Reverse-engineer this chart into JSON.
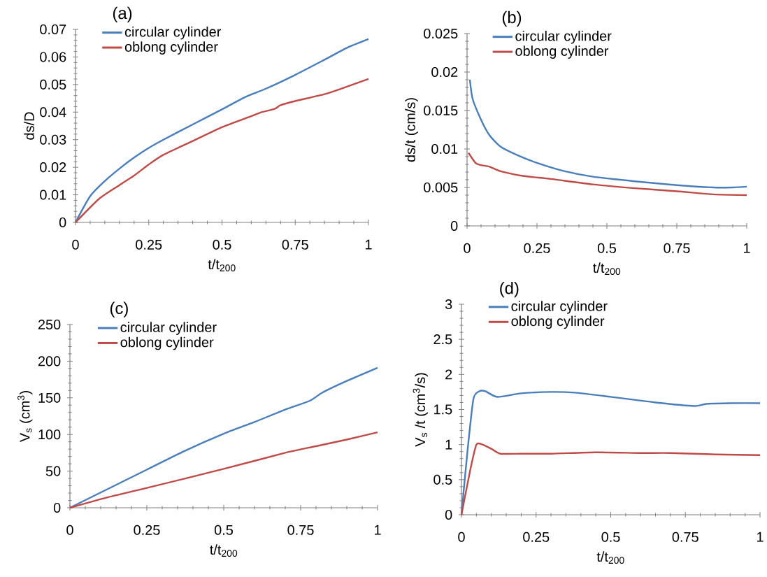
{
  "chart_data": [
    {
      "type": "line",
      "title": "(a)",
      "xlabel": "t/t$_{200}$",
      "ylabel": "ds/D",
      "xlim": [
        0,
        1
      ],
      "ylim": [
        0,
        0.07
      ],
      "xticks": [
        0,
        0.25,
        0.5,
        0.75,
        1
      ],
      "yticks": [
        0,
        0.01,
        0.02,
        0.03,
        0.04,
        0.05,
        0.06,
        0.07
      ],
      "legend": "top left",
      "grid": false,
      "marker": "none",
      "series": [
        {
          "name": "circular cylinder",
          "color": "#4a7ebb",
          "x": [
            0,
            0.05,
            0.1,
            0.15,
            0.2,
            0.25,
            0.3,
            0.4,
            0.5,
            0.58,
            0.65,
            0.75,
            0.85,
            0.93,
            1
          ],
          "values": [
            0,
            0.0095,
            0.015,
            0.0195,
            0.0235,
            0.027,
            0.03,
            0.0355,
            0.041,
            0.0455,
            0.0485,
            0.0535,
            0.059,
            0.0635,
            0.0665
          ]
        },
        {
          "name": "oblong cylinder",
          "color": "#be4b48",
          "x": [
            0,
            0.08,
            0.15,
            0.2,
            0.25,
            0.3,
            0.4,
            0.5,
            0.6,
            0.63,
            0.68,
            0.7,
            0.75,
            0.85,
            0.92,
            1
          ],
          "values": [
            0,
            0.0085,
            0.0135,
            0.017,
            0.021,
            0.0245,
            0.0295,
            0.0345,
            0.0385,
            0.0398,
            0.0412,
            0.0425,
            0.044,
            0.0465,
            0.049,
            0.052
          ]
        }
      ]
    },
    {
      "type": "line",
      "title": "(b)",
      "xlabel": "t/t$_{200}$",
      "ylabel": "ds/t  (cm/s)",
      "xlim": [
        0,
        1
      ],
      "ylim": [
        0,
        0.025
      ],
      "xticks": [
        0,
        0.25,
        0.5,
        0.75,
        1
      ],
      "yticks": [
        0,
        0.005,
        0.01,
        0.015,
        0.02,
        0.025
      ],
      "legend": "top left",
      "grid": false,
      "marker": "none",
      "series": [
        {
          "name": "circular cylinder",
          "color": "#4a7ebb",
          "x": [
            0.01,
            0.02,
            0.05,
            0.08,
            0.12,
            0.18,
            0.25,
            0.35,
            0.45,
            0.6,
            0.75,
            0.88,
            0.95,
            1
          ],
          "values": [
            0.019,
            0.0165,
            0.0138,
            0.0118,
            0.0103,
            0.0092,
            0.0082,
            0.0071,
            0.0064,
            0.0058,
            0.0053,
            0.005,
            0.005,
            0.0051
          ]
        },
        {
          "name": "oblong cylinder",
          "color": "#be4b48",
          "x": [
            0.005,
            0.03,
            0.05,
            0.08,
            0.12,
            0.2,
            0.3,
            0.45,
            0.6,
            0.75,
            0.88,
            1
          ],
          "values": [
            0.0095,
            0.0082,
            0.0079,
            0.0077,
            0.0071,
            0.0065,
            0.0061,
            0.0054,
            0.0049,
            0.0045,
            0.0041,
            0.004
          ]
        }
      ]
    },
    {
      "type": "line",
      "title": "(c)",
      "xlabel": "t/t$_{200}$",
      "ylabel": "V$_{s}$ (cm$^{3}$)",
      "xlim": [
        0,
        1
      ],
      "ylim": [
        0,
        250
      ],
      "xticks": [
        0,
        0.25,
        0.5,
        0.75,
        1
      ],
      "yticks": [
        0,
        50,
        100,
        150,
        200,
        250
      ],
      "legend": "top left",
      "grid": false,
      "marker": "none",
      "series": [
        {
          "name": "circular cylinder",
          "color": "#4a7ebb",
          "x": [
            0,
            0.25,
            0.37,
            0.5,
            0.6,
            0.7,
            0.78,
            0.82,
            0.9,
            1
          ],
          "values": [
            0,
            52,
            77,
            101,
            117,
            134,
            146,
            157,
            173,
            191
          ]
        },
        {
          "name": "oblong cylinder",
          "color": "#be4b48",
          "x": [
            0,
            0.12,
            0.25,
            0.5,
            0.7,
            0.8,
            0.9,
            1
          ],
          "values": [
            0,
            14,
            27,
            53,
            75,
            84,
            93,
            103
          ]
        }
      ]
    },
    {
      "type": "line",
      "title": "(d)",
      "xlabel": "t/t$_{200}$",
      "ylabel": "V$_{s}$ /t (cm$^{3}$/s)",
      "xlim": [
        0,
        1
      ],
      "ylim": [
        0,
        3
      ],
      "xticks": [
        0,
        0.25,
        0.5,
        0.75,
        1
      ],
      "yticks": [
        0,
        0.5,
        1,
        1.5,
        2,
        2.5,
        3
      ],
      "legend": "top left",
      "grid": false,
      "marker": "none",
      "series": [
        {
          "name": "circular cylinder",
          "color": "#4a7ebb",
          "x": [
            0,
            0.02,
            0.04,
            0.06,
            0.08,
            0.12,
            0.2,
            0.3,
            0.38,
            0.5,
            0.65,
            0.78,
            0.82,
            0.9,
            1
          ],
          "values": [
            0,
            0.9,
            1.65,
            1.76,
            1.76,
            1.68,
            1.73,
            1.75,
            1.74,
            1.68,
            1.6,
            1.55,
            1.58,
            1.59,
            1.59
          ]
        },
        {
          "name": "oblong cylinder",
          "color": "#be4b48",
          "x": [
            0,
            0.03,
            0.05,
            0.07,
            0.1,
            0.13,
            0.2,
            0.3,
            0.45,
            0.6,
            0.7,
            0.85,
            1
          ],
          "values": [
            0,
            0.65,
            1.0,
            1.0,
            0.94,
            0.87,
            0.87,
            0.87,
            0.89,
            0.88,
            0.88,
            0.86,
            0.85
          ]
        }
      ]
    }
  ]
}
